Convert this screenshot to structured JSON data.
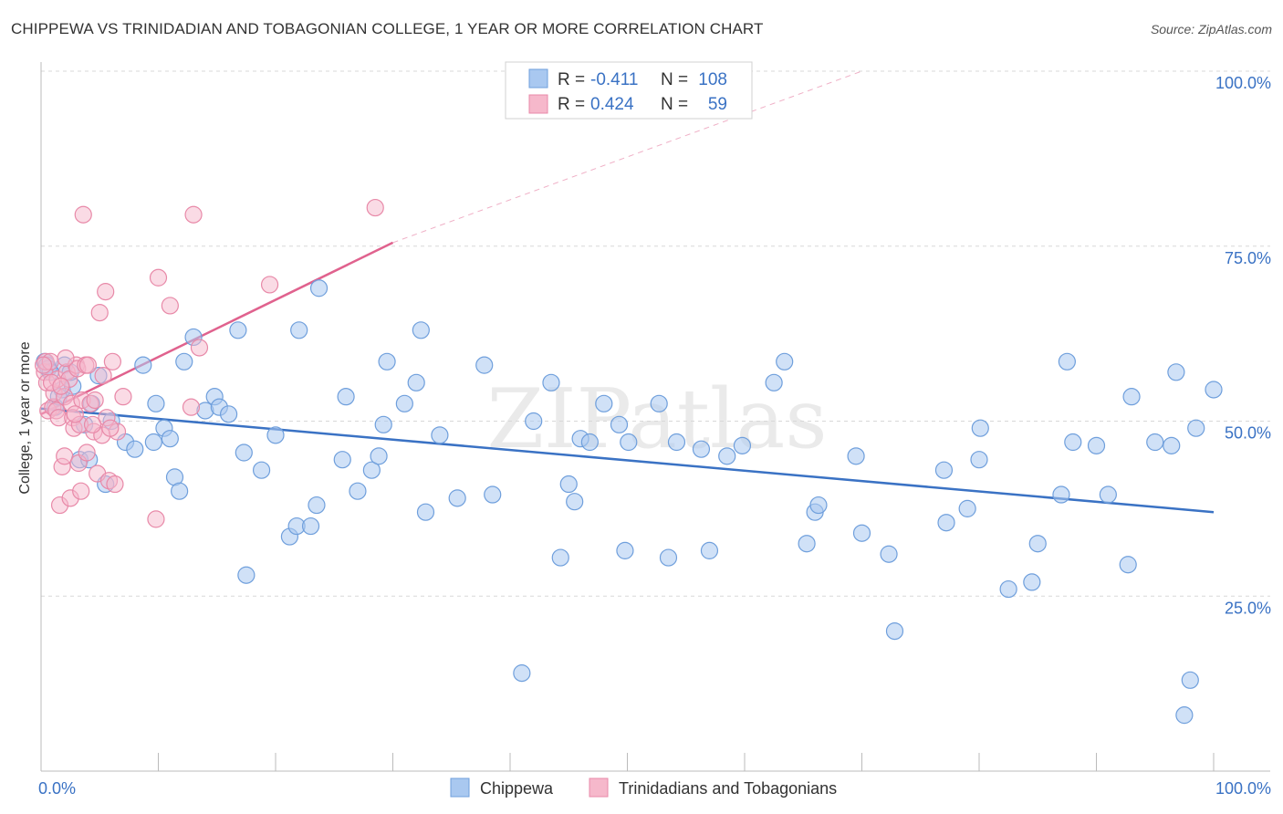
{
  "title": "CHIPPEWA VS TRINIDADIAN AND TOBAGONIAN COLLEGE, 1 YEAR OR MORE CORRELATION CHART",
  "source": "Source: ZipAtlas.com",
  "watermark": "ZIPatlas",
  "colors": {
    "chippewa_fill": "#a9c8f0",
    "chippewa_stroke": "#6f9fdc",
    "chippewa_line": "#3a72c4",
    "trini_fill": "#f6b8cb",
    "trini_stroke": "#e889a8",
    "trini_line": "#e0628e",
    "tick_text": "#3a72c4",
    "grid": "#d8d8d8"
  },
  "legend": {
    "rows": [
      {
        "r_label": "R =",
        "r_value": "-0.411",
        "n_label": "N =",
        "n_value": "108"
      },
      {
        "r_label": "R =",
        "r_value": "0.424",
        "n_label": "N =",
        "n_value": "59"
      }
    ]
  },
  "chart_data": {
    "type": "scatter",
    "title": "CHIPPEWA VS TRINIDADIAN AND TOBAGONIAN COLLEGE, 1 YEAR OR MORE CORRELATION CHART",
    "xlabel": "",
    "ylabel": "College, 1 year or more",
    "xlim": [
      0,
      100
    ],
    "ylim": [
      0,
      100
    ],
    "x_tick_labels": [
      "0.0%",
      "100.0%"
    ],
    "y_tick_labels": [
      "25.0%",
      "50.0%",
      "75.0%",
      "100.0%"
    ],
    "y_ticks": [
      25,
      50,
      75,
      100
    ],
    "legend_placement": "top-center",
    "series": [
      {
        "name": "Chippewa",
        "r": -0.411,
        "n": 108,
        "trend": {
          "x": [
            0,
            100
          ],
          "y": [
            51.8,
            37.0
          ]
        },
        "points": [
          [
            0.3,
            58.5
          ],
          [
            0.5,
            58.0
          ],
          [
            0.6,
            57.5
          ],
          [
            1.2,
            52.0
          ],
          [
            1.8,
            54.5
          ],
          [
            2.0,
            58.0
          ],
          [
            2.7,
            55.0
          ],
          [
            3.3,
            44.5
          ],
          [
            4.1,
            44.5
          ],
          [
            4.3,
            52.5
          ],
          [
            4.9,
            56.5
          ],
          [
            6.0,
            50.0
          ],
          [
            7.2,
            47.0
          ],
          [
            8.0,
            46.0
          ],
          [
            8.7,
            58.0
          ],
          [
            9.6,
            47.0
          ],
          [
            9.8,
            52.5
          ],
          [
            10.5,
            49.0
          ],
          [
            11.0,
            47.5
          ],
          [
            11.4,
            42.0
          ],
          [
            11.8,
            40.0
          ],
          [
            12.2,
            58.5
          ],
          [
            13.0,
            62.0
          ],
          [
            14.0,
            51.5
          ],
          [
            14.8,
            53.5
          ],
          [
            15.2,
            52.0
          ],
          [
            16.0,
            51.0
          ],
          [
            16.8,
            63.0
          ],
          [
            17.3,
            45.5
          ],
          [
            17.5,
            28.0
          ],
          [
            18.8,
            43.0
          ],
          [
            20.0,
            48.0
          ],
          [
            21.2,
            33.5
          ],
          [
            21.8,
            35.0
          ],
          [
            22.0,
            63.0
          ],
          [
            23.0,
            35.0
          ],
          [
            23.5,
            38.0
          ],
          [
            23.7,
            69.0
          ],
          [
            25.7,
            44.5
          ],
          [
            26.0,
            53.5
          ],
          [
            27.0,
            40.0
          ],
          [
            28.2,
            43.0
          ],
          [
            28.8,
            45.0
          ],
          [
            29.2,
            49.5
          ],
          [
            29.5,
            58.5
          ],
          [
            31.0,
            52.5
          ],
          [
            32.0,
            55.5
          ],
          [
            32.4,
            63.0
          ],
          [
            32.8,
            37.0
          ],
          [
            34.0,
            48.0
          ],
          [
            35.5,
            39.0
          ],
          [
            37.8,
            58.0
          ],
          [
            38.5,
            39.5
          ],
          [
            41.0,
            14.0
          ],
          [
            42.0,
            50.0
          ],
          [
            43.5,
            55.5
          ],
          [
            44.3,
            30.5
          ],
          [
            45.0,
            41.0
          ],
          [
            45.5,
            38.5
          ],
          [
            46.0,
            47.5
          ],
          [
            46.8,
            47.0
          ],
          [
            48.0,
            52.5
          ],
          [
            49.3,
            49.5
          ],
          [
            49.8,
            31.5
          ],
          [
            50.1,
            47.0
          ],
          [
            52.7,
            52.5
          ],
          [
            53.5,
            30.5
          ],
          [
            54.2,
            47.0
          ],
          [
            56.3,
            46.0
          ],
          [
            57.0,
            31.5
          ],
          [
            58.5,
            45.0
          ],
          [
            59.8,
            46.5
          ],
          [
            62.5,
            55.5
          ],
          [
            63.4,
            58.5
          ],
          [
            65.3,
            32.5
          ],
          [
            66.0,
            37.0
          ],
          [
            66.3,
            38.0
          ],
          [
            69.5,
            45.0
          ],
          [
            70.0,
            34.0
          ],
          [
            72.3,
            31.0
          ],
          [
            72.8,
            20.0
          ],
          [
            77.0,
            43.0
          ],
          [
            77.2,
            35.5
          ],
          [
            79.0,
            37.5
          ],
          [
            80.0,
            44.5
          ],
          [
            80.1,
            49.0
          ],
          [
            82.5,
            26.0
          ],
          [
            84.5,
            27.0
          ],
          [
            85.0,
            32.5
          ],
          [
            87.0,
            39.5
          ],
          [
            87.5,
            58.5
          ],
          [
            88.0,
            47.0
          ],
          [
            90.0,
            46.5
          ],
          [
            91.0,
            39.5
          ],
          [
            92.7,
            29.5
          ],
          [
            93.0,
            53.5
          ],
          [
            95.0,
            47.0
          ],
          [
            96.4,
            46.5
          ],
          [
            96.8,
            57.0
          ],
          [
            97.5,
            8.0
          ],
          [
            98.0,
            13.0
          ],
          [
            98.5,
            49.0
          ],
          [
            100.0,
            54.5
          ],
          [
            0.8,
            57.0
          ],
          [
            1.5,
            53.5
          ],
          [
            2.5,
            57.0
          ],
          [
            3.7,
            49.5
          ],
          [
            5.5,
            41.0
          ]
        ]
      },
      {
        "name": "Trinidadians and Tobagonians",
        "r": 0.424,
        "n": 59,
        "trend": {
          "x": [
            0,
            30
          ],
          "y": [
            51.0,
            75.5
          ]
        },
        "trend_extension": {
          "x": [
            30,
            70
          ],
          "y": [
            75.5,
            100
          ]
        },
        "points": [
          [
            0.3,
            57.0
          ],
          [
            0.4,
            58.5
          ],
          [
            0.5,
            55.5
          ],
          [
            0.6,
            51.5
          ],
          [
            0.8,
            58.5
          ],
          [
            1.0,
            52.0
          ],
          [
            1.1,
            54.0
          ],
          [
            1.3,
            51.5
          ],
          [
            1.4,
            56.0
          ],
          [
            1.5,
            50.5
          ],
          [
            1.6,
            38.0
          ],
          [
            1.8,
            43.5
          ],
          [
            2.0,
            53.5
          ],
          [
            2.0,
            45.0
          ],
          [
            2.2,
            57.0
          ],
          [
            2.4,
            56.0
          ],
          [
            2.5,
            39.0
          ],
          [
            2.6,
            52.5
          ],
          [
            2.7,
            50.5
          ],
          [
            2.8,
            49.0
          ],
          [
            3.0,
            58.0
          ],
          [
            3.1,
            57.5
          ],
          [
            3.3,
            49.5
          ],
          [
            3.4,
            40.0
          ],
          [
            3.5,
            53.0
          ],
          [
            3.6,
            79.5
          ],
          [
            3.8,
            58.0
          ],
          [
            4.2,
            52.5
          ],
          [
            4.5,
            48.5
          ],
          [
            4.6,
            53.0
          ],
          [
            4.8,
            42.5
          ],
          [
            5.0,
            65.5
          ],
          [
            5.2,
            48.0
          ],
          [
            5.5,
            68.5
          ],
          [
            5.6,
            50.5
          ],
          [
            5.8,
            41.5
          ],
          [
            6.1,
            58.5
          ],
          [
            6.5,
            48.5
          ],
          [
            9.8,
            36.0
          ],
          [
            10.0,
            70.5
          ],
          [
            11.0,
            66.5
          ],
          [
            12.8,
            52.0
          ],
          [
            13.0,
            79.5
          ],
          [
            13.5,
            60.5
          ],
          [
            19.5,
            69.5
          ],
          [
            28.5,
            80.5
          ],
          [
            0.2,
            58.0
          ],
          [
            0.9,
            55.5
          ],
          [
            1.7,
            55.0
          ],
          [
            2.1,
            59.0
          ],
          [
            2.9,
            51.0
          ],
          [
            3.2,
            44.0
          ],
          [
            3.9,
            45.5
          ],
          [
            4.0,
            58.0
          ],
          [
            4.4,
            49.5
          ],
          [
            5.3,
            56.5
          ],
          [
            5.9,
            49.0
          ],
          [
            6.3,
            41.0
          ],
          [
            7.0,
            53.5
          ]
        ]
      }
    ]
  }
}
